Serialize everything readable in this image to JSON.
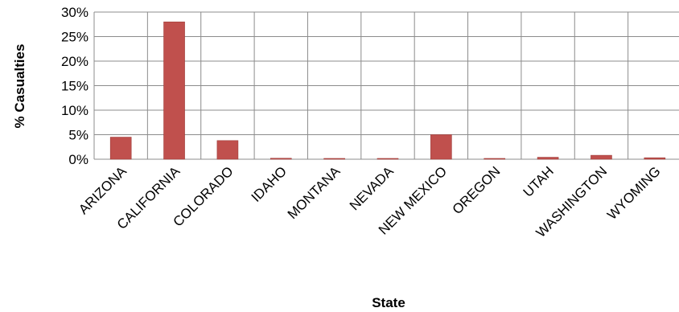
{
  "chart_data": {
    "type": "bar",
    "title": "",
    "xlabel": "State",
    "ylabel": "% Casualties",
    "categories": [
      "ARIZONA",
      "CALIFORNIA",
      "COLORADO",
      "IDAHO",
      "MONTANA",
      "NEVADA",
      "NEW MEXICO",
      "OREGON",
      "UTAH",
      "WASHINGTON",
      "WYOMING"
    ],
    "values": [
      4.5,
      28.0,
      3.8,
      0.2,
      0.05,
      0.05,
      5.0,
      0.05,
      0.4,
      0.8,
      0.3
    ],
    "ylim": [
      0,
      30
    ],
    "yticks": [
      "0%",
      "5%",
      "10%",
      "15%",
      "20%",
      "25%",
      "30%"
    ],
    "grid": true,
    "legend": "none",
    "bar_color": "#C0504D",
    "bar_edge_color": "#9E3B38",
    "grid_color": "#8C8C8C"
  }
}
